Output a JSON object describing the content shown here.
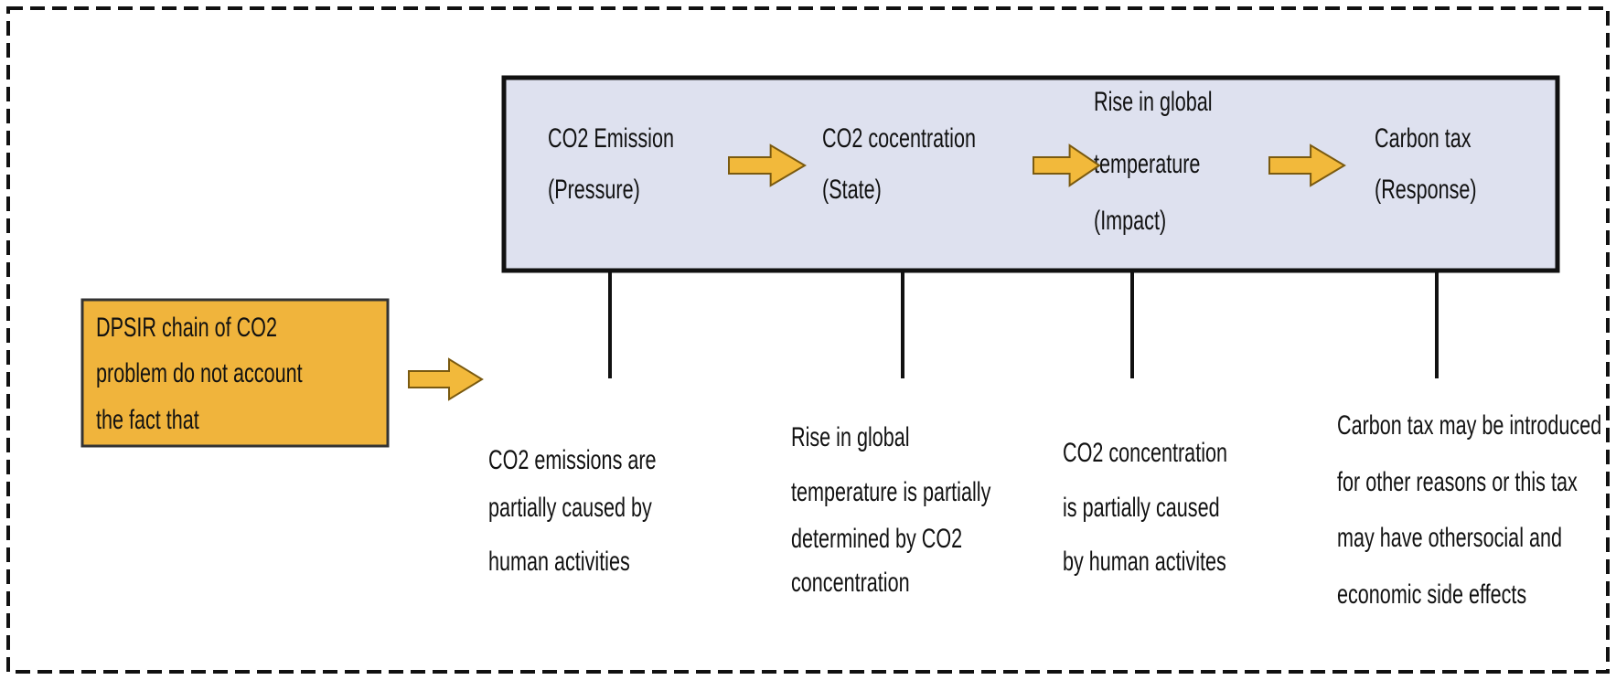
{
  "side_box": {
    "lines": [
      "DPSIR chain of CO2",
      "problem do not account",
      "the fact that"
    ]
  },
  "stages": [
    {
      "lines": [
        "CO2  Emission",
        "(Pressure)"
      ]
    },
    {
      "lines": [
        "CO2 cocentration",
        "(State)"
      ]
    },
    {
      "lines": [
        "Rise in global",
        "temperature",
        "(Impact)"
      ]
    },
    {
      "lines": [
        "Carbon tax",
        "(Response)"
      ]
    }
  ],
  "notes": [
    {
      "lines": [
        "CO2 emissions are",
        "partially caused by",
        "human activities"
      ]
    },
    {
      "lines": [
        "Rise in global",
        "temperature is partially",
        "determined by CO2",
        "concentration"
      ]
    },
    {
      "lines": [
        "CO2 concentration",
        "is partially caused",
        "by human activites"
      ]
    },
    {
      "lines": [
        "Carbon tax may be introduced",
        "for other reasons or this tax",
        "may have othersocial and",
        "economic side effects"
      ]
    }
  ]
}
